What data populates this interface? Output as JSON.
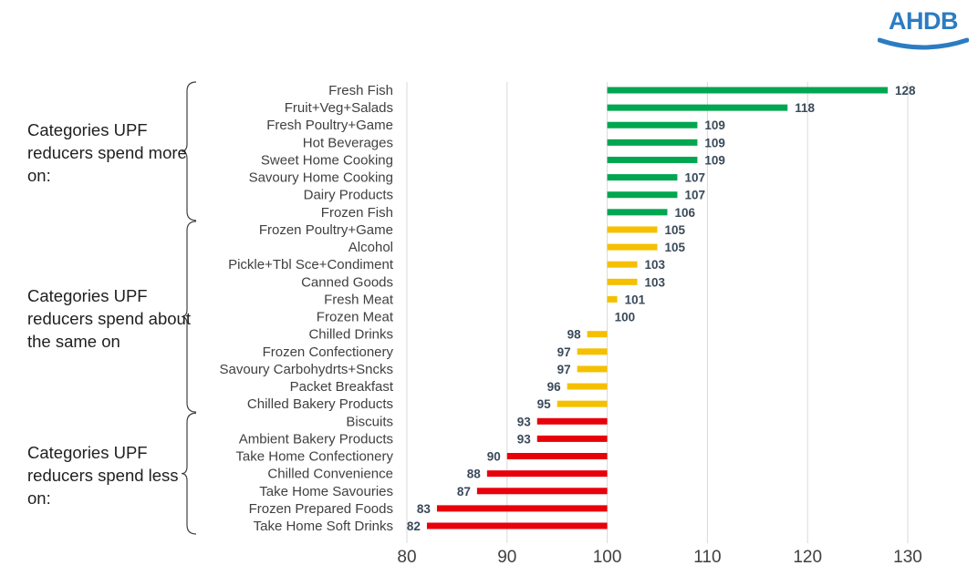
{
  "logo": {
    "text": "AHDB",
    "color": "#2b7cc2"
  },
  "groups": [
    {
      "label": "Categories UPF reducers spend more on:",
      "from": 0,
      "to": 7
    },
    {
      "label": "Categories UPF reducers spend about the same on",
      "from": 8,
      "to": 18
    },
    {
      "label": "Categories UPF reducers spend less on:",
      "from": 19,
      "to": 25
    }
  ],
  "colors": {
    "more": "#00a650",
    "same": "#f5c000",
    "less": "#e8000b",
    "grid": "#d9d9d9",
    "label": "#404040",
    "value": "#3a4a5a"
  },
  "chart_data": {
    "type": "bar",
    "orientation": "horizontal",
    "baseline": 100,
    "xlim": [
      80,
      130
    ],
    "xticks": [
      80,
      90,
      100,
      110,
      120,
      130
    ],
    "grid": true,
    "categories": [
      "Fresh Fish",
      "Fruit+Veg+Salads",
      "Fresh Poultry+Game",
      "Hot Beverages",
      "Sweet Home Cooking",
      "Savoury Home Cooking",
      "Dairy Products",
      "Frozen Fish",
      "Frozen Poultry+Game",
      "Alcohol",
      "Pickle+Tbl Sce+Condiment",
      "Canned Goods",
      "Fresh Meat",
      "Frozen Meat",
      "Chilled Drinks",
      "Frozen Confectionery",
      "Savoury Carbohydrts+Sncks",
      "Packet Breakfast",
      "Chilled Bakery Products",
      "Biscuits",
      "Ambient Bakery Products",
      "Take Home Confectionery",
      "Chilled Convenience",
      "Take Home Savouries",
      "Frozen Prepared Foods",
      "Take Home Soft Drinks"
    ],
    "values": [
      128,
      118,
      109,
      109,
      109,
      107,
      107,
      106,
      105,
      105,
      103,
      103,
      101,
      100,
      98,
      97,
      97,
      96,
      95,
      93,
      93,
      90,
      88,
      87,
      83,
      82
    ],
    "groups": [
      "more",
      "more",
      "more",
      "more",
      "more",
      "more",
      "more",
      "more",
      "same",
      "same",
      "same",
      "same",
      "same",
      "same",
      "same",
      "same",
      "same",
      "same",
      "same",
      "less",
      "less",
      "less",
      "less",
      "less",
      "less",
      "less"
    ]
  }
}
